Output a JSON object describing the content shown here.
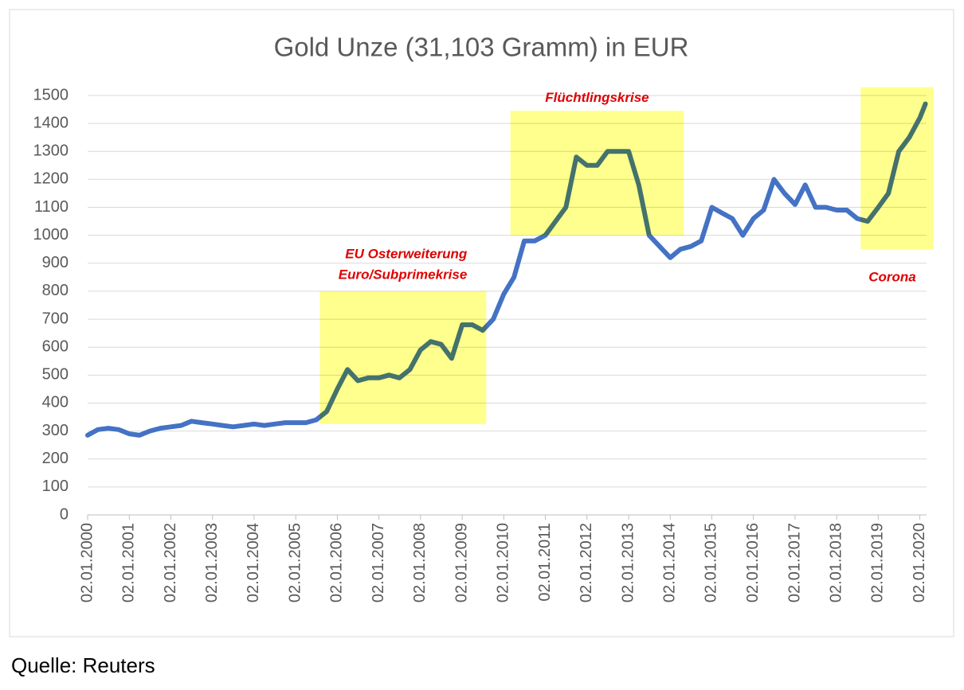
{
  "chart_data": {
    "type": "line",
    "title": "Gold Unze (31,103 Gramm) in EUR",
    "source": "Quelle: Reuters",
    "x": [
      "2000-01-02",
      "2000-04-01",
      "2000-07-01",
      "2000-10-01",
      "2001-01-02",
      "2001-04-01",
      "2001-07-01",
      "2001-10-01",
      "2002-01-02",
      "2002-04-01",
      "2002-07-01",
      "2002-10-01",
      "2003-01-02",
      "2003-04-01",
      "2003-07-01",
      "2003-10-01",
      "2004-01-02",
      "2004-04-01",
      "2004-07-01",
      "2004-10-01",
      "2005-01-02",
      "2005-04-01",
      "2005-07-01",
      "2005-10-01",
      "2006-01-02",
      "2006-04-01",
      "2006-07-01",
      "2006-10-01",
      "2007-01-02",
      "2007-04-01",
      "2007-07-01",
      "2007-10-01",
      "2008-01-02",
      "2008-04-01",
      "2008-07-01",
      "2008-10-01",
      "2009-01-02",
      "2009-04-01",
      "2009-07-01",
      "2009-10-01",
      "2010-01-02",
      "2010-04-01",
      "2010-07-01",
      "2010-10-01",
      "2011-01-02",
      "2011-04-01",
      "2011-07-01",
      "2011-10-01",
      "2012-01-02",
      "2012-04-01",
      "2012-07-01",
      "2012-10-01",
      "2013-01-02",
      "2013-04-01",
      "2013-07-01",
      "2013-10-01",
      "2014-01-02",
      "2014-04-01",
      "2014-07-01",
      "2014-10-01",
      "2015-01-02",
      "2015-04-01",
      "2015-07-01",
      "2015-10-01",
      "2016-01-02",
      "2016-04-01",
      "2016-07-01",
      "2016-10-01",
      "2017-01-02",
      "2017-04-01",
      "2017-07-01",
      "2017-10-01",
      "2018-01-02",
      "2018-04-01",
      "2018-07-01",
      "2018-10-01",
      "2019-01-02",
      "2019-04-01",
      "2019-07-01",
      "2019-10-01",
      "2020-01-02",
      "2020-02-20"
    ],
    "series": [
      {
        "name": "Gold Unze in EUR",
        "color": "#4472c4",
        "values": [
          285,
          305,
          310,
          305,
          290,
          285,
          300,
          310,
          315,
          320,
          335,
          330,
          325,
          320,
          315,
          320,
          325,
          320,
          325,
          330,
          330,
          330,
          340,
          370,
          450,
          520,
          480,
          490,
          490,
          500,
          490,
          520,
          590,
          620,
          610,
          560,
          680,
          680,
          660,
          700,
          790,
          850,
          980,
          980,
          1000,
          1050,
          1100,
          1280,
          1250,
          1250,
          1300,
          1300,
          1300,
          1180,
          1000,
          960,
          920,
          950,
          960,
          980,
          1100,
          1080,
          1060,
          1000,
          1060,
          1090,
          1200,
          1150,
          1110,
          1180,
          1100,
          1100,
          1090,
          1090,
          1060,
          1050,
          1100,
          1150,
          1300,
          1350,
          1420,
          1470
        ]
      }
    ],
    "xlim": [
      "2000-01-02",
      "2020-03-01"
    ],
    "xticks": [
      {
        "value": "2000-01-02",
        "label": "02.01.2000"
      },
      {
        "value": "2001-01-02",
        "label": "02.01.2001"
      },
      {
        "value": "2002-01-02",
        "label": "02.01.2002"
      },
      {
        "value": "2003-01-02",
        "label": "02.01.2003"
      },
      {
        "value": "2004-01-02",
        "label": "02.01.2004"
      },
      {
        "value": "2005-01-02",
        "label": "02.01.2005"
      },
      {
        "value": "2006-01-02",
        "label": "02.01.2006"
      },
      {
        "value": "2007-01-02",
        "label": "02.01.2007"
      },
      {
        "value": "2008-01-02",
        "label": "02.01.2008"
      },
      {
        "value": "2009-01-02",
        "label": "02.01.2009"
      },
      {
        "value": "2010-01-02",
        "label": "02.01.2010"
      },
      {
        "value": "2011-01-02",
        "label": "02.01.2011"
      },
      {
        "value": "2012-01-02",
        "label": "02.01.2012"
      },
      {
        "value": "2013-01-02",
        "label": "02.01.2013"
      },
      {
        "value": "2014-01-02",
        "label": "02.01.2014"
      },
      {
        "value": "2015-01-02",
        "label": "02.01.2015"
      },
      {
        "value": "2016-01-02",
        "label": "02.01.2016"
      },
      {
        "value": "2017-01-02",
        "label": "02.01.2017"
      },
      {
        "value": "2018-01-02",
        "label": "02.01.2018"
      },
      {
        "value": "2019-01-02",
        "label": "02.01.2019"
      },
      {
        "value": "2020-01-02",
        "label": "02.01.2020"
      }
    ],
    "ylim": [
      0,
      1500
    ],
    "yticks": [
      0,
      100,
      200,
      300,
      400,
      500,
      600,
      700,
      800,
      900,
      1000,
      1100,
      1200,
      1300,
      1400,
      1500
    ],
    "grid": true,
    "annotations": [
      {
        "text": [
          "EU Osterweiterung",
          "Euro/Subprimekrise"
        ],
        "x_range": [
          "2005-08-01",
          "2009-08-01"
        ],
        "y_range": [
          325,
          800
        ],
        "color": "#ffff66",
        "text_color": "#e00000"
      },
      {
        "text": [
          "Flüchtlingskrise"
        ],
        "x_range": [
          "2010-03-01",
          "2014-05-01"
        ],
        "y_range": [
          1000,
          1445
        ],
        "color": "#ffff66",
        "text_color": "#e00000"
      },
      {
        "text": [
          "Corona"
        ],
        "x_range": [
          "2018-08-01",
          "2020-05-01"
        ],
        "y_range": [
          950,
          1530
        ],
        "color": "#ffff66",
        "text_color": "#e00000"
      }
    ]
  }
}
